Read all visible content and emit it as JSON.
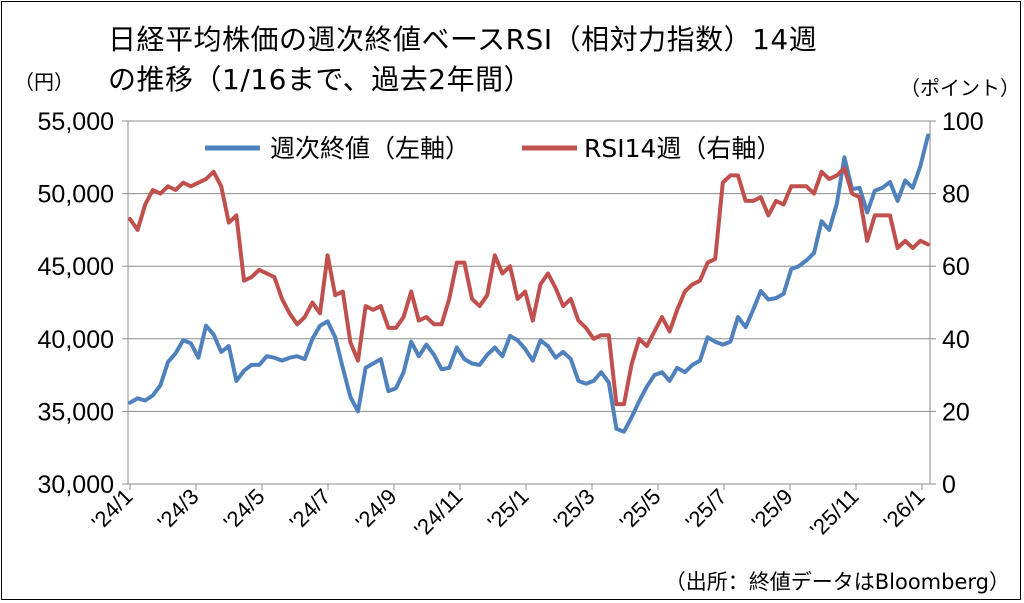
{
  "chart_data": {
    "type": "line",
    "title_line1": "日経平均株価の週次終値ベースRSI（相対力指数）14週",
    "title_line2": "の推移（1/16まで、過去2年間）",
    "left_axis_unit": "（円）",
    "right_axis_unit": "（ポイント）",
    "source": "（出所：終値データはBloomberg）",
    "left_axis": {
      "range": [
        30000,
        55000
      ],
      "ticks": [
        "30,000",
        "35,000",
        "40,000",
        "45,000",
        "50,000",
        "55,000"
      ]
    },
    "right_axis": {
      "range": [
        0,
        100
      ],
      "ticks": [
        "0",
        "20",
        "40",
        "60",
        "80",
        "100"
      ]
    },
    "x_ticks": [
      "'24/1",
      "'24/3",
      "'24/5",
      "'24/7",
      "'24/9",
      "'24/11",
      "'25/1",
      "'25/3",
      "'25/5",
      "'25/7",
      "'25/9",
      "'25/11",
      "'26/1"
    ],
    "grid": "horizontal",
    "legend_placement": "top-center",
    "series": [
      {
        "name": "週次終値（左軸）",
        "axis": "left",
        "color": "#4F81BD",
        "values": [
          35600,
          35900,
          35750,
          36100,
          36800,
          38400,
          39000,
          39900,
          39700,
          38700,
          40900,
          40300,
          39100,
          39500,
          37100,
          37800,
          38200,
          38200,
          38800,
          38700,
          38500,
          38700,
          38800,
          38600,
          40000,
          40900,
          41200,
          40100,
          38000,
          36000,
          35000,
          38000,
          38300,
          38600,
          36400,
          36600,
          37700,
          39800,
          38800,
          39600,
          38900,
          37900,
          38000,
          39400,
          38600,
          38300,
          38200,
          38900,
          39400,
          38800,
          40200,
          39900,
          39300,
          38500,
          39900,
          39500,
          38700,
          39100,
          38600,
          37100,
          36900,
          37100,
          37700,
          37000,
          33800,
          33600,
          34600,
          35700,
          36700,
          37500,
          37700,
          37100,
          38000,
          37700,
          38200,
          38500,
          40100,
          39800,
          39600,
          39800,
          41500,
          40800,
          42000,
          43300,
          42700,
          42800,
          43100,
          44800,
          45000,
          45400,
          45900,
          48100,
          47500,
          49300,
          52500,
          50300,
          50400,
          48700,
          50200,
          50400,
          50800,
          49500,
          50900,
          50400,
          51900,
          54000
        ]
      },
      {
        "name": "RSI14週（右軸）",
        "axis": "right",
        "color": "#C0504D",
        "values": [
          73,
          70,
          77,
          81,
          80,
          82,
          81,
          83,
          82,
          83,
          84,
          86,
          82,
          72,
          74,
          56,
          57,
          59,
          58,
          57,
          51,
          47,
          44,
          46,
          50,
          47,
          63,
          52,
          53,
          39,
          34,
          49,
          48,
          49,
          43,
          43,
          46,
          53,
          45,
          46,
          44,
          44,
          51,
          61,
          61,
          51,
          49,
          52,
          63,
          58,
          60,
          51,
          53,
          45,
          55,
          58,
          54,
          49,
          51,
          45,
          43,
          40,
          41,
          41,
          22,
          22,
          33,
          40,
          38,
          42,
          46,
          42,
          48,
          53,
          55,
          56,
          61,
          62,
          83,
          85,
          85,
          78,
          78,
          79,
          74,
          78,
          77,
          82,
          82,
          82,
          80,
          86,
          84,
          85,
          87,
          80,
          79,
          67,
          74,
          74,
          74,
          65,
          67,
          65,
          67,
          66
        ]
      }
    ]
  }
}
